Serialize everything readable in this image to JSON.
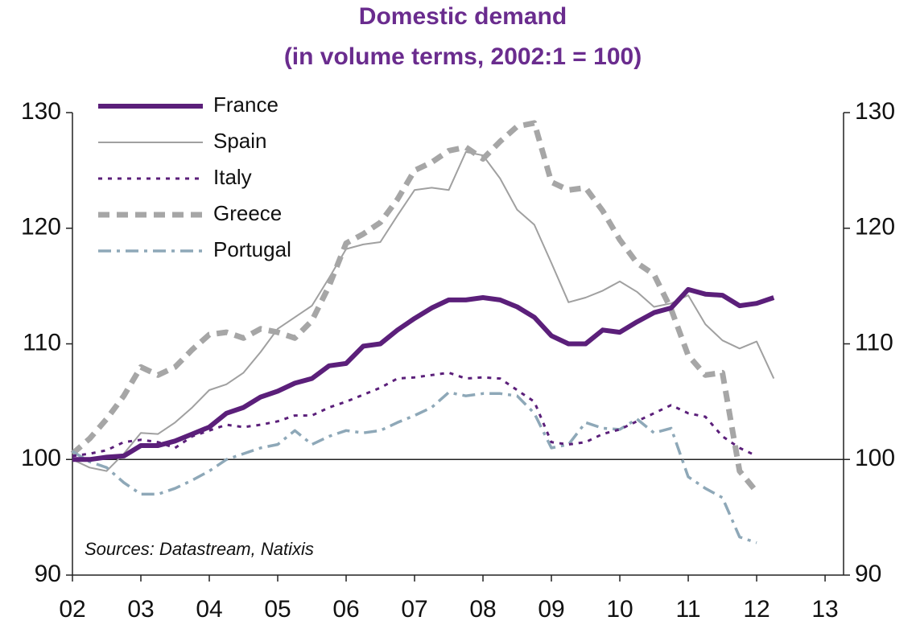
{
  "chart_data": {
    "type": "line",
    "title": "Domestic demand",
    "subtitle": "(in volume terms, 2002:1 = 100)",
    "annotation": "Sources: Datastream, Natixis",
    "x": [
      2002,
      2002.25,
      2002.5,
      2002.75,
      2003,
      2003.25,
      2003.5,
      2003.75,
      2004,
      2004.25,
      2004.5,
      2004.75,
      2005,
      2005.25,
      2005.5,
      2005.75,
      2006,
      2006.25,
      2006.5,
      2006.75,
      2007,
      2007.25,
      2007.5,
      2007.75,
      2008,
      2008.25,
      2008.5,
      2008.75,
      2009,
      2009.25,
      2009.5,
      2009.75,
      2010,
      2010.25,
      2010.5,
      2010.75,
      2011,
      2011.25,
      2011.5,
      2011.75,
      2012,
      2012.25
    ],
    "series": [
      {
        "name": "France",
        "color": "#5b1f7a",
        "linestyle": "thick",
        "values": [
          100,
          100,
          100.2,
          100.3,
          101.2,
          101.2,
          101.6,
          102.2,
          102.8,
          104,
          104.5,
          105.4,
          105.9,
          106.6,
          107,
          108.1,
          108.3,
          109.8,
          110,
          111.2,
          112.2,
          113.1,
          113.8,
          113.8,
          114,
          113.8,
          113.2,
          112.3,
          110.7,
          110,
          110,
          111.2,
          111,
          111.9,
          112.7,
          113.1,
          114.7,
          114.3,
          114.2,
          113.3,
          113.5,
          114
        ]
      },
      {
        "name": "Spain",
        "color": "#a0a0a0",
        "linestyle": "thin",
        "values": [
          100,
          99.3,
          99,
          100.5,
          102.3,
          102.2,
          103.2,
          104.5,
          106,
          106.5,
          107.5,
          109.3,
          111.3,
          112.3,
          113.3,
          115.7,
          118.2,
          118.6,
          118.8,
          121.1,
          123.3,
          123.5,
          123.3,
          126.6,
          126.3,
          124.3,
          121.6,
          120.3,
          117,
          113.6,
          114,
          114.6,
          115.4,
          114.5,
          113.2,
          113.5,
          114.2,
          111.7,
          110.3,
          109.6,
          110.2,
          107
        ]
      },
      {
        "name": "Italy",
        "color": "#5b1f7a",
        "linestyle": "dotted",
        "values": [
          100.3,
          100.5,
          100.8,
          101.5,
          101.7,
          101.5,
          101,
          102,
          102.5,
          103,
          102.8,
          103,
          103.3,
          103.8,
          103.8,
          104.5,
          105,
          105.6,
          106.2,
          107,
          107.1,
          107.3,
          107.5,
          107,
          107.1,
          107,
          106,
          105,
          101.5,
          101.3,
          101.5,
          102.2,
          102.6,
          103.3,
          104,
          104.7,
          104,
          103.7,
          102,
          101,
          100.3,
          null
        ]
      },
      {
        "name": "Greece",
        "color": "#a6a6a6",
        "linestyle": "dashed",
        "values": [
          100.5,
          101.8,
          103.5,
          105.5,
          108,
          107.3,
          108,
          109.5,
          110.8,
          111,
          110.5,
          111.3,
          111,
          110.5,
          112,
          115,
          118.7,
          119.5,
          120.5,
          122.5,
          125,
          125.7,
          126.7,
          127,
          126,
          127.5,
          128.8,
          129.1,
          124,
          123.3,
          123.5,
          121.5,
          119,
          117,
          116,
          113,
          109,
          107.3,
          107.5,
          99,
          97.2,
          null
        ]
      },
      {
        "name": "Portugal",
        "color": "#8ea8b8",
        "linestyle": "dashdot",
        "values": [
          100.7,
          99.8,
          99.3,
          98,
          97,
          97,
          97.5,
          98.2,
          99,
          100,
          100.5,
          101,
          101.3,
          102.5,
          101.3,
          102,
          102.5,
          102.3,
          102.5,
          103.2,
          103.8,
          104.5,
          105.8,
          105.5,
          105.7,
          105.7,
          105.5,
          104,
          101,
          101.3,
          103.2,
          102.7,
          102.6,
          103.5,
          102.3,
          102.7,
          98.5,
          97.5,
          96.7,
          93.3,
          92.8,
          null
        ]
      }
    ],
    "xlim": [
      2002,
      2013.27
    ],
    "xticks": [
      {
        "value": 2002,
        "label": "02"
      },
      {
        "value": 2003,
        "label": "03"
      },
      {
        "value": 2004,
        "label": "04"
      },
      {
        "value": 2005,
        "label": "05"
      },
      {
        "value": 2006,
        "label": "06"
      },
      {
        "value": 2007,
        "label": "07"
      },
      {
        "value": 2008,
        "label": "08"
      },
      {
        "value": 2009,
        "label": "09"
      },
      {
        "value": 2010,
        "label": "10"
      },
      {
        "value": 2011,
        "label": "11"
      },
      {
        "value": 2012,
        "label": "12"
      },
      {
        "value": 2013,
        "label": "13"
      }
    ],
    "ylim": [
      90,
      130
    ],
    "yticks": [
      90,
      100,
      110,
      120,
      130
    ],
    "y2lim": [
      90,
      130
    ],
    "y2ticks": [
      90,
      100,
      110,
      120,
      130
    ],
    "reference_line": 100,
    "legend": "top-left"
  }
}
